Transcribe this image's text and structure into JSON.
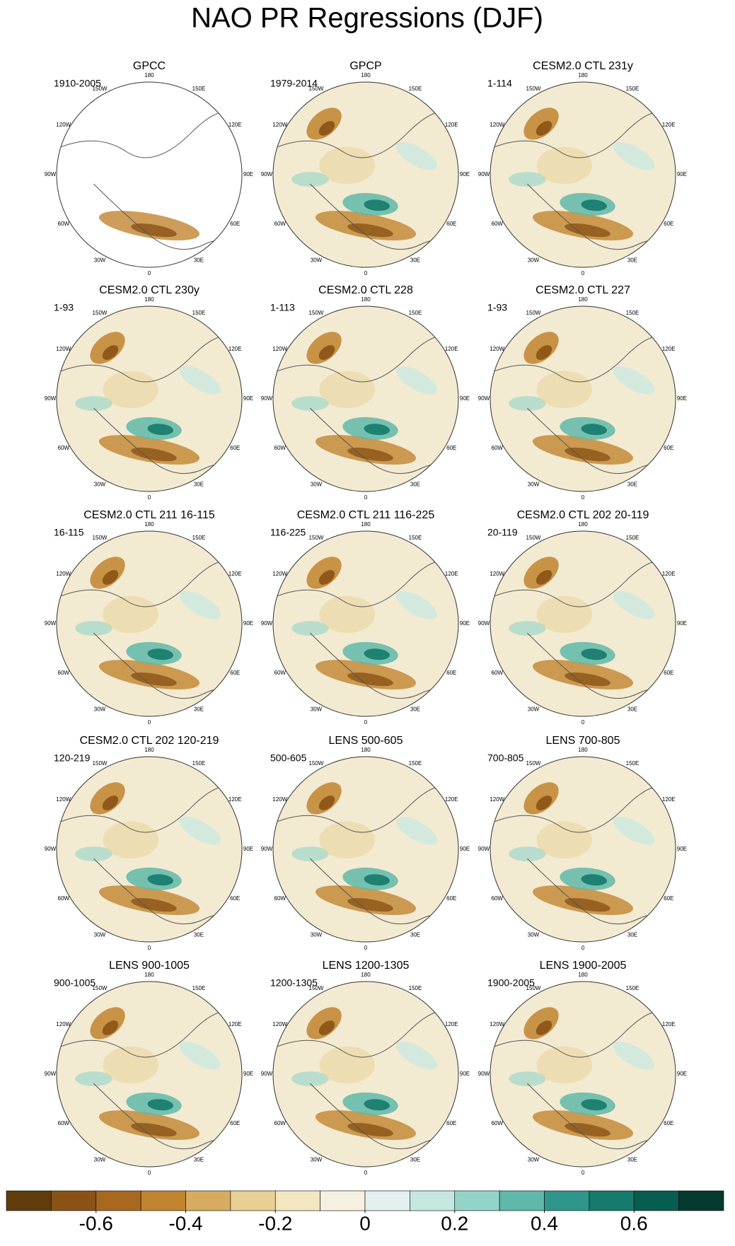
{
  "title": "NAO PR Regressions (DJF)",
  "panels": [
    {
      "title": "GPCC",
      "period": "1910-2005"
    },
    {
      "title": "GPCP",
      "period": "1979-2014"
    },
    {
      "title": "CESM2.0 CTL 231y",
      "period": "1-114"
    },
    {
      "title": "CESM2.0 CTL 230y",
      "period": "1-93"
    },
    {
      "title": "CESM2.0 CTL 228",
      "period": "1-113"
    },
    {
      "title": "CESM2.0 CTL 227",
      "period": "1-93"
    },
    {
      "title": "CESM2.0 CTL 211 16-115",
      "period": "16-115"
    },
    {
      "title": "CESM2.0 CTL 211 116-225",
      "period": "116-225"
    },
    {
      "title": "CESM2.0 CTL 202 20-119",
      "period": "20-119"
    },
    {
      "title": "CESM2.0 CTL 202 120-219",
      "period": "120-219"
    },
    {
      "title": "LENS 500-605",
      "period": "500-605"
    },
    {
      "title": "LENS 700-805",
      "period": "700-805"
    },
    {
      "title": "LENS 900-1005",
      "period": "900-1005"
    },
    {
      "title": "LENS 1200-1305",
      "period": "1200-1305"
    },
    {
      "title": "LENS 1900-2005",
      "period": "1900-2005"
    }
  ],
  "lon_labels": [
    "180",
    "150E",
    "120E",
    "90E",
    "60E",
    "30E",
    "0",
    "30W",
    "60W",
    "90W",
    "120W",
    "150W"
  ],
  "colorbar": {
    "xlim": [
      -0.8,
      0.8
    ],
    "xticks": [
      -0.6,
      -0.4,
      -0.2,
      0,
      0.2,
      0.4,
      0.6
    ],
    "colors": [
      "#5e3c0c",
      "#8a5315",
      "#a8681f",
      "#c0842f",
      "#d8ac60",
      "#e8cf92",
      "#f3e6c0",
      "#f6f0e0",
      "#e3f0ed",
      "#c4e8e1",
      "#92d4c8",
      "#5fb8a9",
      "#2e968a",
      "#157a6c",
      "#075e50",
      "#04392f"
    ]
  }
}
